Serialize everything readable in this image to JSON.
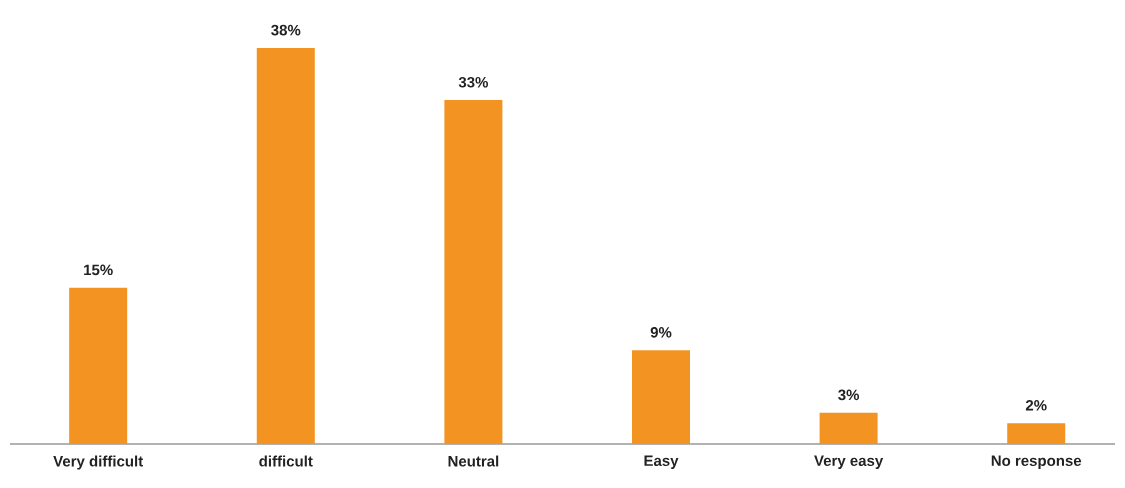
{
  "chart_data": {
    "type": "bar",
    "categories": [
      "Very difficult",
      "difficult",
      "Neutral",
      "Easy",
      "Very easy",
      "No response"
    ],
    "values": [
      15,
      38,
      33,
      9,
      3,
      2
    ],
    "value_labels": [
      "15%",
      "38%",
      "33%",
      "9%",
      "3%",
      "2%"
    ],
    "color": "#f39321"
  }
}
